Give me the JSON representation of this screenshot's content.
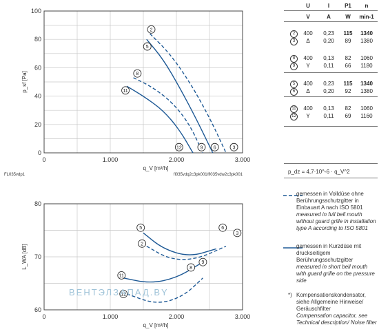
{
  "chart_data": [
    {
      "type": "line",
      "title": "",
      "xlabel": "q_V [m³/h]",
      "ylabel": "p_sf [Pa]",
      "xlim": [
        0,
        3000
      ],
      "ylim": [
        0,
        100
      ],
      "x_ticks": [
        "0",
        "1.000",
        "2.000",
        "3.000"
      ],
      "y_ticks": [
        "0",
        "20",
        "40",
        "60",
        "80",
        "100"
      ],
      "grid": true,
      "series": [
        {
          "name": "2",
          "style": "dashed",
          "x": [
            1600,
            1900,
            2200,
            2500,
            2750
          ],
          "y": [
            84,
            70,
            50,
            25,
            0
          ]
        },
        {
          "name": "5",
          "style": "solid",
          "x": [
            1550,
            1800,
            2050,
            2300,
            2550
          ],
          "y": [
            80,
            66,
            46,
            24,
            0
          ]
        },
        {
          "name": "8",
          "style": "dashed",
          "x": [
            1350,
            1650,
            1950,
            2200,
            2400
          ],
          "y": [
            53,
            46,
            35,
            20,
            0
          ]
        },
        {
          "name": "11",
          "style": "solid",
          "x": [
            1250,
            1500,
            1800,
            2050,
            2250
          ],
          "y": [
            47,
            40,
            30,
            16,
            0
          ]
        }
      ],
      "markers": [
        {
          "label": "2",
          "x": 1620,
          "y": 87
        },
        {
          "label": "5",
          "x": 1560,
          "y": 75
        },
        {
          "label": "8",
          "x": 1410,
          "y": 56
        },
        {
          "label": "11",
          "x": 1230,
          "y": 44
        },
        {
          "label": "12",
          "x": 2040,
          "y": 4
        },
        {
          "label": "9",
          "x": 2380,
          "y": 4
        },
        {
          "label": "6",
          "x": 2580,
          "y": 4
        },
        {
          "label": "3",
          "x": 2870,
          "y": 4
        }
      ],
      "bottom_left_text": "FL035vdp1",
      "bottom_right_text": "fl035vdq2c3pk001/fl035vdw2c3pk001"
    },
    {
      "type": "line",
      "title": "",
      "xlabel": "q_V [m³/h]",
      "ylabel": "L_WA [dB]",
      "xlim": [
        0,
        3000
      ],
      "ylim": [
        60,
        80
      ],
      "x_ticks": [
        "0",
        "1.000",
        "2.000",
        "3.000"
      ],
      "y_ticks": [
        "60",
        "70",
        "80"
      ],
      "grid": true,
      "series": [
        {
          "name": "5/6",
          "style": "solid",
          "x": [
            1500,
            1800,
            2200,
            2600
          ],
          "y": [
            74.5,
            71.5,
            70,
            71.5
          ]
        },
        {
          "name": "2/3",
          "style": "dashed",
          "x": [
            1550,
            1900,
            2300,
            2750
          ],
          "y": [
            72,
            69.5,
            69.5,
            72
          ]
        },
        {
          "name": "11/9",
          "style": "solid",
          "x": [
            1200,
            1600,
            2000,
            2400
          ],
          "y": [
            66,
            65,
            66,
            69
          ]
        },
        {
          "name": "12/8",
          "style": "dashed",
          "x": [
            1250,
            1700,
            2100,
            2400
          ],
          "y": [
            63,
            61,
            62.5,
            66
          ]
        }
      ],
      "markers": [
        {
          "label": "5",
          "x": 1460,
          "y": 75.5
        },
        {
          "label": "6",
          "x": 2700,
          "y": 75.5
        },
        {
          "label": "3",
          "x": 2920,
          "y": 74.5
        },
        {
          "label": "2",
          "x": 1480,
          "y": 72.5
        },
        {
          "label": "9",
          "x": 2400,
          "y": 69
        },
        {
          "label": "8",
          "x": 2220,
          "y": 68
        },
        {
          "label": "11",
          "x": 1170,
          "y": 66.5
        },
        {
          "label": "12",
          "x": 1200,
          "y": 63
        }
      ]
    }
  ],
  "table": {
    "headers": [
      "",
      "U",
      "I",
      "P1",
      "n"
    ],
    "units": [
      "",
      "V",
      "A",
      "W",
      "min-1"
    ],
    "rows": [
      [
        "2",
        "400",
        "0,23",
        "115",
        "1340"
      ],
      [
        "3",
        "Δ",
        "0,20",
        "89",
        "1380"
      ],
      [
        "8",
        "400",
        "0,13",
        "82",
        "1060"
      ],
      [
        "9",
        "Y",
        "0,11",
        "66",
        "1180"
      ],
      [
        "5",
        "400",
        "0,23",
        "115",
        "1340"
      ],
      [
        "6",
        "Δ",
        "0,20",
        "92",
        "1380"
      ],
      [
        "11",
        "400",
        "0,13",
        "82",
        "1060"
      ],
      [
        "12",
        "Y",
        "0,11",
        "69",
        "1160"
      ]
    ]
  },
  "formula": "p_dz = 4,7·10^-6 · q_V^2",
  "legend": {
    "dashed_de": "gemessen in Volldüse ohne Berührungsschutzgitter in Einbauart A nach ISO 5801",
    "dashed_en": "measured in full bell mouth without guard grille in installation type A according to ISO 5801",
    "solid_de": "gemessen in Kurzdüse mit druckseitigem Berührungsschutzgitter",
    "solid_en": "measured in short bell mouth with guard grille on the pressure side",
    "note_mark": "*)",
    "note_de": "Kompensationskondensator, siehe Allgemeine Hinweise/ Geräuschfilter",
    "note_en": "Compensation capacitor, see Technical description/ Noise filter"
  },
  "watermark": "ВЕНТЭЛЗАПАД.BY",
  "colors": {
    "curve": "#1f5a96",
    "grid": "#bbbbbb",
    "axis": "#333333"
  }
}
